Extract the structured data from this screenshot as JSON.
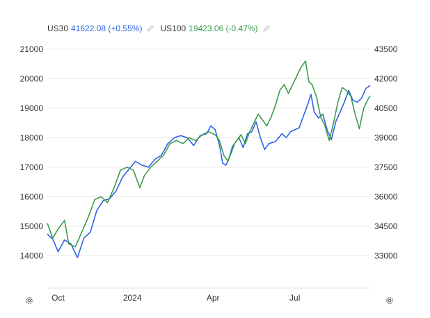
{
  "legend": {
    "us30_name": "US30",
    "us30_value": "41622.08 (+0.55%)",
    "us100_name": "US100",
    "us100_value": "19423.06 (-0.47%)"
  },
  "colors": {
    "us30": "#2d62e8",
    "us100": "#3a9b48",
    "grid": "#e6e6e6",
    "text": "#333333"
  },
  "icons": {
    "legend_edit": "pencil-icon",
    "settings": "gear-icon"
  },
  "chart_data": {
    "type": "line",
    "x_labels": [
      "Oct",
      "2024",
      "Apr",
      "Jul"
    ],
    "x_label_index": [
      10,
      79,
      154,
      230
    ],
    "left_axis": {
      "ticks": [
        14000,
        15000,
        16000,
        17000,
        18000,
        19000,
        20000,
        21000
      ],
      "range": [
        12900,
        21300
      ]
    },
    "right_axis": {
      "ticks": [
        33000,
        34500,
        36000,
        37500,
        39000,
        40500,
        42000,
        43500
      ],
      "range": [
        31350,
        43950
      ]
    },
    "grid": "horizontal",
    "series": [
      {
        "name": "US30",
        "axis": "right",
        "points": [
          [
            0,
            34100
          ],
          [
            5,
            33850
          ],
          [
            10,
            33200
          ],
          [
            16,
            33800
          ],
          [
            22,
            33600
          ],
          [
            28,
            32900
          ],
          [
            34,
            33900
          ],
          [
            40,
            34200
          ],
          [
            46,
            35300
          ],
          [
            52,
            35800
          ],
          [
            58,
            35900
          ],
          [
            64,
            36300
          ],
          [
            70,
            37000
          ],
          [
            76,
            37400
          ],
          [
            82,
            37800
          ],
          [
            88,
            37600
          ],
          [
            94,
            37500
          ],
          [
            100,
            37900
          ],
          [
            106,
            38100
          ],
          [
            112,
            38700
          ],
          [
            118,
            39000
          ],
          [
            124,
            39100
          ],
          [
            130,
            39000
          ],
          [
            136,
            38600
          ],
          [
            142,
            39100
          ],
          [
            148,
            39200
          ],
          [
            152,
            39600
          ],
          [
            156,
            39400
          ],
          [
            160,
            38600
          ],
          [
            163,
            37700
          ],
          [
            166,
            37600
          ],
          [
            170,
            38100
          ],
          [
            174,
            38700
          ],
          [
            178,
            39000
          ],
          [
            182,
            38500
          ],
          [
            186,
            39200
          ],
          [
            190,
            39300
          ],
          [
            194,
            39800
          ],
          [
            198,
            39000
          ],
          [
            202,
            38400
          ],
          [
            206,
            38700
          ],
          [
            212,
            38800
          ],
          [
            218,
            39200
          ],
          [
            222,
            39000
          ],
          [
            226,
            39300
          ],
          [
            230,
            39400
          ],
          [
            234,
            39500
          ],
          [
            238,
            40100
          ],
          [
            242,
            40700
          ],
          [
            245,
            41200
          ],
          [
            248,
            40300
          ],
          [
            252,
            40000
          ],
          [
            256,
            40200
          ],
          [
            260,
            39400
          ],
          [
            264,
            38900
          ],
          [
            268,
            39800
          ],
          [
            272,
            40300
          ],
          [
            276,
            40800
          ],
          [
            280,
            41400
          ],
          [
            284,
            40900
          ],
          [
            288,
            40800
          ],
          [
            292,
            41000
          ],
          [
            296,
            41500
          ],
          [
            300,
            41650
          ]
        ]
      },
      {
        "name": "US100",
        "axis": "left",
        "points": [
          [
            0,
            15100
          ],
          [
            5,
            14600
          ],
          [
            10,
            14900
          ],
          [
            16,
            15200
          ],
          [
            20,
            14400
          ],
          [
            26,
            14300
          ],
          [
            32,
            14800
          ],
          [
            38,
            15300
          ],
          [
            44,
            15900
          ],
          [
            50,
            16000
          ],
          [
            56,
            15800
          ],
          [
            62,
            16300
          ],
          [
            68,
            16900
          ],
          [
            74,
            17000
          ],
          [
            80,
            16900
          ],
          [
            86,
            16300
          ],
          [
            90,
            16700
          ],
          [
            96,
            17000
          ],
          [
            102,
            17200
          ],
          [
            108,
            17400
          ],
          [
            114,
            17800
          ],
          [
            120,
            17900
          ],
          [
            126,
            17800
          ],
          [
            132,
            18000
          ],
          [
            138,
            17900
          ],
          [
            144,
            18100
          ],
          [
            150,
            18200
          ],
          [
            156,
            18100
          ],
          [
            160,
            17900
          ],
          [
            164,
            17400
          ],
          [
            168,
            17200
          ],
          [
            172,
            17700
          ],
          [
            176,
            17900
          ],
          [
            180,
            18100
          ],
          [
            184,
            17800
          ],
          [
            188,
            18200
          ],
          [
            192,
            18500
          ],
          [
            196,
            18800
          ],
          [
            200,
            18600
          ],
          [
            204,
            18400
          ],
          [
            208,
            18700
          ],
          [
            212,
            19100
          ],
          [
            216,
            19600
          ],
          [
            220,
            19800
          ],
          [
            224,
            19500
          ],
          [
            228,
            19800
          ],
          [
            232,
            20100
          ],
          [
            236,
            20400
          ],
          [
            240,
            20600
          ],
          [
            243,
            19900
          ],
          [
            246,
            19800
          ],
          [
            250,
            19400
          ],
          [
            254,
            18700
          ],
          [
            258,
            18400
          ],
          [
            262,
            17900
          ],
          [
            266,
            18500
          ],
          [
            270,
            19200
          ],
          [
            274,
            19700
          ],
          [
            278,
            19600
          ],
          [
            282,
            19400
          ],
          [
            286,
            18800
          ],
          [
            290,
            18300
          ],
          [
            294,
            19000
          ],
          [
            298,
            19300
          ],
          [
            300,
            19423
          ]
        ]
      }
    ]
  }
}
